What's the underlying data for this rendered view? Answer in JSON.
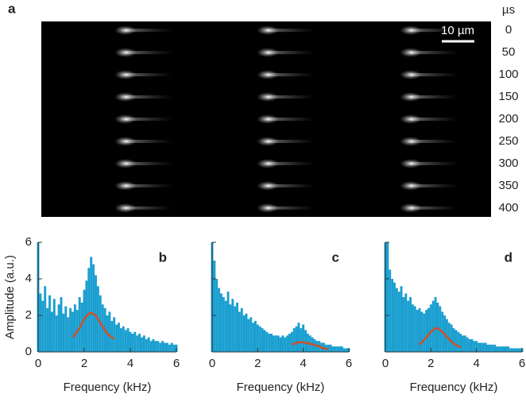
{
  "chart_data": [
    {
      "type": "image",
      "label": "a",
      "scale_bar": "10 µm",
      "y_unit": "µs",
      "ylim": [
        -20,
        420
      ],
      "yticks": [
        0,
        50,
        100,
        150,
        200,
        250,
        300,
        350,
        400
      ]
    },
    {
      "type": "line",
      "label": "b",
      "xlabel": "Frequency (kHz)",
      "ylabel": "Amplitude (a.u.)",
      "xlim": [
        0,
        6
      ],
      "ylim": [
        0,
        6
      ],
      "xticks": [
        0,
        2,
        4,
        6
      ],
      "yticks": [
        0,
        2,
        4,
        6
      ],
      "series": [
        {
          "color": "#1a9fd0",
          "style": "bars",
          "x": [
            0,
            0.1,
            0.2,
            0.3,
            0.4,
            0.5,
            0.6,
            0.7,
            0.8,
            0.9,
            1.0,
            1.1,
            1.2,
            1.3,
            1.4,
            1.5,
            1.6,
            1.7,
            1.8,
            1.9,
            2.0,
            2.1,
            2.2,
            2.3,
            2.4,
            2.5,
            2.6,
            2.7,
            2.8,
            2.9,
            3.0,
            3.1,
            3.2,
            3.3,
            3.4,
            3.5,
            3.6,
            3.7,
            3.8,
            3.9,
            4.0,
            4.1,
            4.2,
            4.3,
            4.4,
            4.5,
            4.6,
            4.7,
            4.8,
            4.9,
            5.0,
            5.1,
            5.2,
            5.3,
            5.4,
            5.5,
            5.6,
            5.7,
            5.8,
            5.9,
            6.0
          ],
          "values": [
            6,
            3.2,
            2.8,
            3.6,
            2.4,
            3.1,
            2.2,
            2.9,
            2.0,
            2.6,
            3.0,
            2.1,
            2.5,
            1.9,
            2.4,
            2.2,
            2.6,
            2.3,
            3.0,
            2.7,
            3.4,
            3.9,
            4.6,
            5.2,
            4.8,
            4.2,
            3.6,
            3.1,
            2.6,
            2.4,
            2.0,
            2.2,
            1.7,
            1.9,
            1.5,
            1.6,
            1.3,
            1.4,
            1.2,
            1.3,
            1.1,
            1.0,
            1.1,
            0.9,
            1.0,
            0.8,
            0.9,
            0.7,
            0.8,
            0.6,
            0.7,
            0.6,
            0.6,
            0.5,
            0.6,
            0.5,
            0.5,
            0.4,
            0.5,
            0.4,
            0.4
          ]
        },
        {
          "color": "#d0502a",
          "style": "line",
          "x": [
            1.5,
            1.8,
            2.0,
            2.2,
            2.3,
            2.5,
            2.8,
            3.0,
            3.3
          ],
          "values": [
            0.8,
            1.3,
            1.8,
            2.1,
            2.15,
            2.0,
            1.4,
            1.0,
            0.7
          ]
        }
      ]
    },
    {
      "type": "line",
      "label": "c",
      "xlabel": "Frequency (kHz)",
      "xlim": [
        0,
        6
      ],
      "ylim": [
        0,
        6
      ],
      "xticks": [
        0,
        2,
        4,
        6
      ],
      "yticks_unlabeled": [
        0,
        2,
        4,
        6
      ],
      "series": [
        {
          "color": "#1a9fd0",
          "style": "bars",
          "x": [
            0,
            0.1,
            0.2,
            0.3,
            0.4,
            0.5,
            0.6,
            0.7,
            0.8,
            0.9,
            1.0,
            1.1,
            1.2,
            1.3,
            1.4,
            1.5,
            1.6,
            1.7,
            1.8,
            1.9,
            2.0,
            2.1,
            2.2,
            2.3,
            2.4,
            2.5,
            2.6,
            2.7,
            2.8,
            2.9,
            3.0,
            3.1,
            3.2,
            3.3,
            3.4,
            3.5,
            3.6,
            3.7,
            3.8,
            3.9,
            4.0,
            4.1,
            4.2,
            4.3,
            4.4,
            4.5,
            4.6,
            4.7,
            4.8,
            4.9,
            5.0,
            5.1,
            5.2,
            5.3,
            5.4,
            5.5,
            5.6,
            5.7,
            5.8,
            5.9,
            6.0
          ],
          "values": [
            6,
            5.0,
            4.0,
            3.5,
            3.2,
            3.0,
            2.8,
            3.3,
            2.6,
            2.9,
            2.5,
            2.7,
            2.2,
            2.4,
            2.0,
            2.1,
            1.8,
            1.9,
            1.6,
            1.7,
            1.5,
            1.4,
            1.3,
            1.2,
            1.1,
            1.0,
            1.0,
            0.9,
            0.9,
            0.9,
            0.8,
            0.9,
            0.8,
            0.9,
            1.0,
            1.1,
            1.3,
            1.4,
            1.6,
            1.3,
            1.5,
            1.2,
            1.0,
            0.9,
            0.8,
            0.7,
            0.6,
            0.6,
            0.5,
            0.5,
            0.4,
            0.4,
            0.4,
            0.3,
            0.3,
            0.3,
            0.3,
            0.3,
            0.2,
            0.2,
            0.2
          ]
        },
        {
          "color": "#d0502a",
          "style": "line",
          "x": [
            3.5,
            3.7,
            3.9,
            4.1,
            4.3,
            4.6,
            4.9,
            5.1
          ],
          "values": [
            0.4,
            0.5,
            0.55,
            0.5,
            0.45,
            0.35,
            0.2,
            0.15
          ]
        }
      ]
    },
    {
      "type": "line",
      "label": "d",
      "xlabel": "Frequency (kHz)",
      "xlim": [
        0,
        6
      ],
      "ylim": [
        0,
        6
      ],
      "xticks": [
        0,
        2,
        4,
        6
      ],
      "yticks_unlabeled": [
        0,
        2,
        4,
        6
      ],
      "series": [
        {
          "color": "#1a9fd0",
          "style": "bars",
          "x": [
            0,
            0.1,
            0.2,
            0.3,
            0.4,
            0.5,
            0.6,
            0.7,
            0.8,
            0.9,
            1.0,
            1.1,
            1.2,
            1.3,
            1.4,
            1.5,
            1.6,
            1.7,
            1.8,
            1.9,
            2.0,
            2.1,
            2.2,
            2.3,
            2.4,
            2.5,
            2.6,
            2.7,
            2.8,
            2.9,
            3.0,
            3.1,
            3.2,
            3.3,
            3.4,
            3.5,
            3.6,
            3.7,
            3.8,
            3.9,
            4.0,
            4.1,
            4.2,
            4.3,
            4.4,
            4.5,
            4.6,
            4.7,
            4.8,
            4.9,
            5.0,
            5.1,
            5.2,
            5.3,
            5.4,
            5.5,
            5.6,
            5.7,
            5.8,
            5.9,
            6.0
          ],
          "values": [
            6,
            6,
            4.5,
            4.0,
            3.8,
            3.5,
            3.3,
            3.6,
            3.0,
            3.2,
            2.8,
            3.0,
            2.6,
            2.5,
            2.3,
            2.4,
            2.2,
            2.1,
            2.3,
            2.4,
            2.6,
            2.8,
            3.0,
            2.7,
            2.5,
            2.2,
            2.0,
            1.8,
            1.6,
            1.5,
            1.3,
            1.2,
            1.1,
            1.0,
            0.9,
            0.9,
            0.8,
            0.7,
            0.7,
            0.6,
            0.6,
            0.5,
            0.5,
            0.5,
            0.5,
            0.4,
            0.4,
            0.4,
            0.4,
            0.3,
            0.3,
            0.3,
            0.3,
            0.3,
            0.3,
            0.2,
            0.2,
            0.2,
            0.2,
            0.2,
            0.2
          ]
        },
        {
          "color": "#d0502a",
          "style": "line",
          "x": [
            1.5,
            1.8,
            2.0,
            2.2,
            2.3,
            2.5,
            2.8,
            3.0,
            3.3
          ],
          "values": [
            0.4,
            0.8,
            1.1,
            1.3,
            1.3,
            1.1,
            0.7,
            0.45,
            0.25
          ]
        }
      ]
    }
  ]
}
